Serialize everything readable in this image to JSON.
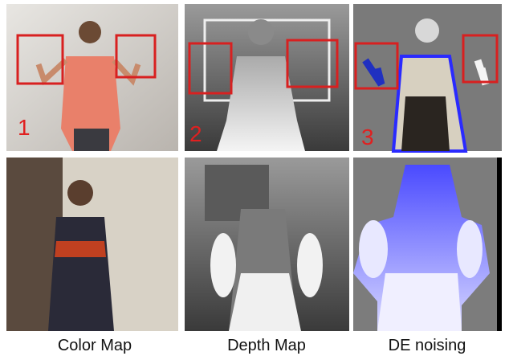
{
  "panels": [
    {
      "number": "1"
    },
    {
      "number": "2"
    },
    {
      "number": "3"
    }
  ],
  "captions": [
    "Color Map",
    "Depth Map",
    "DE noising"
  ]
}
